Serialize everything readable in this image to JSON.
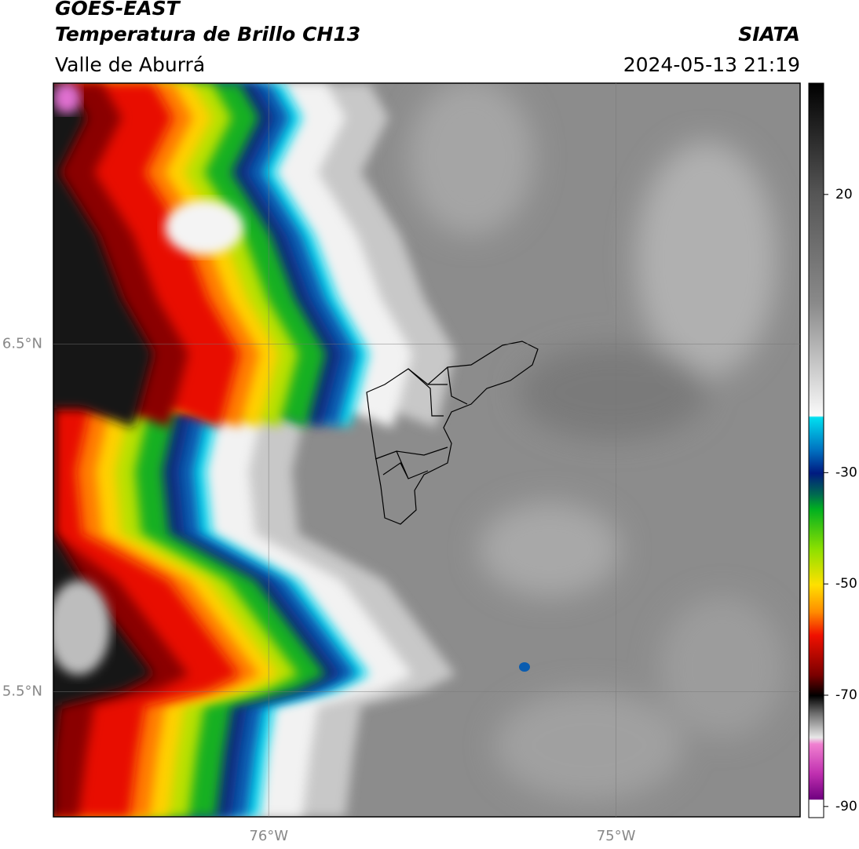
{
  "header": {
    "title": "GOES-EAST",
    "subtitle": "Temperatura de Brillo CH13",
    "source": "SIATA",
    "region": "Valle de Aburrá",
    "datetime": "2024-05-13 21:19"
  },
  "map": {
    "xlim": [
      -76.62,
      -74.47
    ],
    "ylim": [
      5.14,
      7.25
    ],
    "xticks": [
      {
        "value": -76,
        "label": "76°W"
      },
      {
        "value": -75,
        "label": "75°W"
      }
    ],
    "yticks": [
      {
        "value": 6.5,
        "label": "6.5°N"
      },
      {
        "value": 5.5,
        "label": "5.5°N"
      }
    ],
    "grid": true
  },
  "colorbar": {
    "lim": [
      -92,
      40
    ],
    "ticks": [
      20,
      -30,
      -50,
      -70,
      -90
    ]
  }
}
